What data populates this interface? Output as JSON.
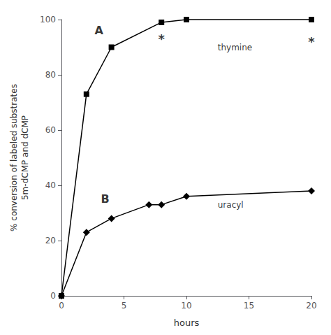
{
  "chart_data": {
    "type": "line",
    "xlabel": "hours",
    "ylabel": "% conversion of labeled substrates\n5m-dCMP and dCMP",
    "series": [
      {
        "x": [
          0,
          2,
          4,
          8,
          10,
          20
        ],
        "values": [
          0,
          73,
          90,
          99,
          100,
          100
        ],
        "color": "#000000",
        "marker": "square"
      },
      {
        "x": [
          0,
          2,
          4,
          7,
          8,
          10,
          20
        ],
        "values": [
          0,
          23,
          28,
          33,
          33,
          36,
          38
        ],
        "color": "#000000",
        "marker": "diamond"
      }
    ],
    "annotations": [
      {
        "text": "*",
        "x": 8,
        "y": 93
      },
      {
        "text": "*",
        "x": 20,
        "y": 92
      },
      {
        "text": "A",
        "x": 3.0,
        "y": 96
      },
      {
        "text": "B",
        "x": 3.5,
        "y": 35
      },
      {
        "text": "thymine",
        "x": 12.5,
        "y": 90
      },
      {
        "text": "uracyl",
        "x": 12.5,
        "y": 33
      }
    ],
    "xlim": [
      0,
      20
    ],
    "ylim": [
      0,
      100
    ],
    "xticks": [
      0,
      5,
      10,
      15,
      20
    ],
    "yticks": [
      0,
      20,
      40,
      60,
      80,
      100
    ],
    "grid": false
  }
}
